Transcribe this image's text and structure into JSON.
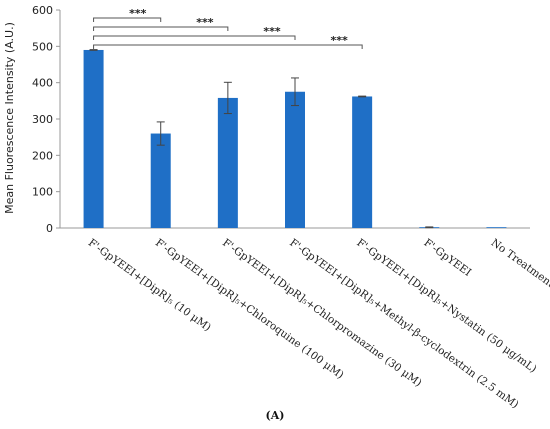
{
  "chart_data": {
    "type": "bar",
    "categories": [
      "F'-GpYEEI+[DipR]₅ (10 μM)",
      "F'-GpYEEI+[DipR]₅+Chloroquine (100 μM)",
      "F'-GpYEEI+[DipR]₅+Chlorpromazine (30 μM)",
      "F'-GpYEEI+[DipR]₅+Methyl-β-cyclodextrin (2.5 mM)",
      "F'-GpYEEI+[DipR]₅+Nystatin (50 μg/mL)",
      "F'-GpYEEI",
      "No Treatment"
    ],
    "values": [
      490,
      260,
      358,
      375,
      362,
      2,
      1
    ],
    "errors": [
      1,
      32,
      43,
      38,
      1,
      1,
      0
    ],
    "ylabel": "Mean Fluorescence Intensity (A.U.)",
    "ylim": [
      0,
      600
    ],
    "yticks": [
      "0",
      "100",
      "200",
      "300",
      "400",
      "500",
      "600"
    ],
    "grid": false,
    "bar_color": "#1f6fc6",
    "significance": [
      {
        "from": 0,
        "to": 1,
        "label": "***"
      },
      {
        "from": 0,
        "to": 2,
        "label": "***"
      },
      {
        "from": 0,
        "to": 3,
        "label": "***"
      },
      {
        "from": 0,
        "to": 4,
        "label": "***"
      }
    ],
    "panel_label": "(A)"
  }
}
